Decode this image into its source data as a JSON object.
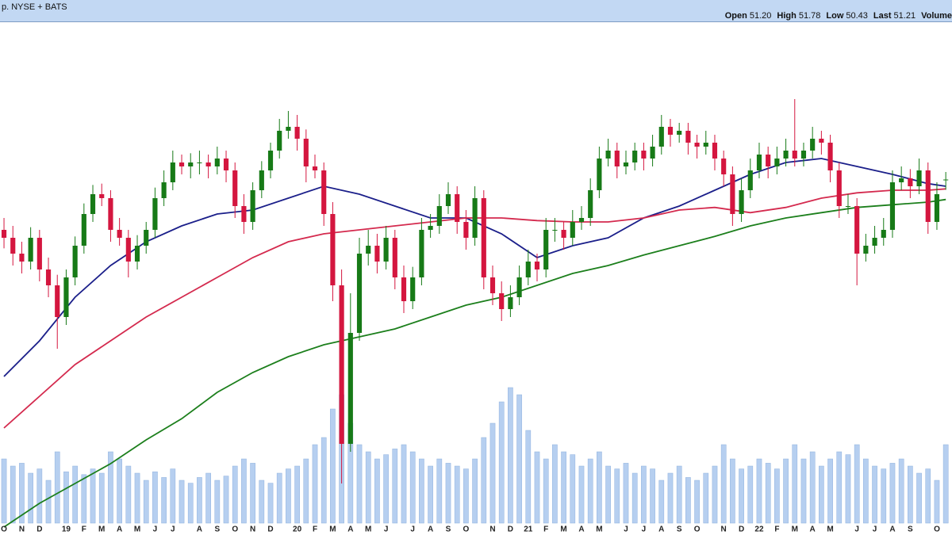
{
  "header": {
    "title": "p. NYSE + BATS",
    "quote": [
      {
        "label": "Open",
        "value": "51.20"
      },
      {
        "label": "High",
        "value": "51.78"
      },
      {
        "label": "Low",
        "value": "50.43"
      },
      {
        "label": "Last",
        "value": "51.21"
      },
      {
        "label": "Volume"
      }
    ]
  },
  "chart_data": {
    "type": "candlestick",
    "categories": [
      "O",
      null,
      "N",
      null,
      "D",
      null,
      null,
      "19",
      null,
      "F",
      null,
      "M",
      null,
      "A",
      null,
      "M",
      null,
      "J",
      null,
      "J",
      null,
      null,
      "A",
      null,
      "S",
      null,
      "O",
      null,
      "N",
      null,
      "D",
      null,
      null,
      "20",
      null,
      "F",
      null,
      "M",
      null,
      "A",
      null,
      "M",
      null,
      "J",
      null,
      null,
      "J",
      null,
      "A",
      null,
      "S",
      null,
      "O",
      null,
      null,
      "N",
      null,
      "D",
      null,
      "21",
      null,
      "F",
      null,
      "M",
      null,
      "A",
      null,
      "M",
      null,
      null,
      "J",
      null,
      "J",
      null,
      "A",
      null,
      "S",
      null,
      "O",
      null,
      null,
      "N",
      null,
      "D",
      null,
      "22",
      null,
      "F",
      null,
      "M",
      null,
      "A",
      null,
      "M",
      null,
      null,
      "J",
      null,
      "J",
      null,
      "A",
      null,
      "S",
      null,
      null,
      "O",
      null
    ],
    "open": [
      47.4,
      46.8,
      45.6,
      45.0,
      46.8,
      44.4,
      43.2,
      40.8,
      43.8,
      46.2,
      48.6,
      50.1,
      49.8,
      47.4,
      46.8,
      45.0,
      46.2,
      47.4,
      49.8,
      51.0,
      52.5,
      52.2,
      52.5,
      52.5,
      52.2,
      52.8,
      51.9,
      49.2,
      48.0,
      50.4,
      51.9,
      53.4,
      54.9,
      55.2,
      54.3,
      52.2,
      51.9,
      48.6,
      43.2,
      31.2,
      39.6,
      45.6,
      46.2,
      45.0,
      46.8,
      43.8,
      42.0,
      43.8,
      47.4,
      47.7,
      49.2,
      50.1,
      48.0,
      46.8,
      49.8,
      43.8,
      42.6,
      41.4,
      42.3,
      43.8,
      45.0,
      44.4,
      47.4,
      47.4,
      46.8,
      48.0,
      48.3,
      50.4,
      52.8,
      53.4,
      52.2,
      52.5,
      53.4,
      52.8,
      53.7,
      55.2,
      54.6,
      54.9,
      54.0,
      53.7,
      54.0,
      52.8,
      51.6,
      48.6,
      50.4,
      51.9,
      53.1,
      52.2,
      52.8,
      53.4,
      52.8,
      53.4,
      54.3,
      54.0,
      51.9,
      49.2,
      49.2,
      45.6,
      46.2,
      46.8,
      47.4,
      51.0,
      51.3,
      50.7,
      51.9,
      48.0,
      51.2
    ],
    "high": [
      48.3,
      47.7,
      46.5,
      47.6,
      47.4,
      45.3,
      44.0,
      44.4,
      46.9,
      49.4,
      50.8,
      50.9,
      50.4,
      48.3,
      47.4,
      47.0,
      48.0,
      50.6,
      51.9,
      53.4,
      53.1,
      53.2,
      53.4,
      53.1,
      53.7,
      53.4,
      52.5,
      50.1,
      51.0,
      52.6,
      54.0,
      55.8,
      56.4,
      56.1,
      55.0,
      53.1,
      52.5,
      49.5,
      44.4,
      42.6,
      46.8,
      47.4,
      47.1,
      47.7,
      47.4,
      44.7,
      44.6,
      48.3,
      48.6,
      50.1,
      51.0,
      50.7,
      48.9,
      50.7,
      50.4,
      44.7,
      43.5,
      43.2,
      44.7,
      45.9,
      45.6,
      48.3,
      48.3,
      48.0,
      48.9,
      49.2,
      51.3,
      53.7,
      54.3,
      54.0,
      53.4,
      54.0,
      54.0,
      54.6,
      56.1,
      55.8,
      55.5,
      55.5,
      54.6,
      54.9,
      54.6,
      53.4,
      52.2,
      51.3,
      52.8,
      54.0,
      53.7,
      53.7,
      54.3,
      57.3,
      54.0,
      55.2,
      54.9,
      54.6,
      52.5,
      50.1,
      49.8,
      47.1,
      47.7,
      48.3,
      51.9,
      52.2,
      52.0,
      52.8,
      52.5,
      51.0,
      51.78
    ],
    "low": [
      46.0,
      44.7,
      44.1,
      44.4,
      43.5,
      42.3,
      38.4,
      40.2,
      43.2,
      45.6,
      48.0,
      49.2,
      46.5,
      46.2,
      43.8,
      44.4,
      45.6,
      46.8,
      49.2,
      50.4,
      51.6,
      51.3,
      51.6,
      51.3,
      51.6,
      51.0,
      48.3,
      47.1,
      47.4,
      49.8,
      51.3,
      52.8,
      54.3,
      53.4,
      51.0,
      51.3,
      47.7,
      42.0,
      28.2,
      30.6,
      39.0,
      44.7,
      44.1,
      44.4,
      42.9,
      41.1,
      41.4,
      43.2,
      46.8,
      47.1,
      48.6,
      47.1,
      45.9,
      46.2,
      42.9,
      41.7,
      40.5,
      40.8,
      41.7,
      43.2,
      43.5,
      43.8,
      46.5,
      45.9,
      46.2,
      47.4,
      47.7,
      49.8,
      52.2,
      51.3,
      51.6,
      51.9,
      51.9,
      52.2,
      53.1,
      53.7,
      54.0,
      53.1,
      52.8,
      53.1,
      51.9,
      50.7,
      47.7,
      48.0,
      49.8,
      51.3,
      51.3,
      51.6,
      52.2,
      52.2,
      52.2,
      52.8,
      53.1,
      51.0,
      48.3,
      48.6,
      43.2,
      45.0,
      45.6,
      46.2,
      46.8,
      50.4,
      49.8,
      50.1,
      47.1,
      47.4,
      50.43
    ],
    "close": [
      46.8,
      45.6,
      45.0,
      46.8,
      44.4,
      43.2,
      40.8,
      43.8,
      46.2,
      48.6,
      50.1,
      49.8,
      47.4,
      46.8,
      45.0,
      46.2,
      47.4,
      49.8,
      51.0,
      52.5,
      52.2,
      52.5,
      52.5,
      52.2,
      52.8,
      51.9,
      49.2,
      48.0,
      50.4,
      51.9,
      53.4,
      54.9,
      55.2,
      54.3,
      52.2,
      51.9,
      48.6,
      43.2,
      31.2,
      39.6,
      45.6,
      46.2,
      45.0,
      46.8,
      43.8,
      42.0,
      43.8,
      47.4,
      47.7,
      49.2,
      50.1,
      48.0,
      46.8,
      49.8,
      43.8,
      42.6,
      41.4,
      42.3,
      43.8,
      45.0,
      44.4,
      47.4,
      47.4,
      46.8,
      48.0,
      48.3,
      50.4,
      52.8,
      53.4,
      52.2,
      52.5,
      53.4,
      52.8,
      53.7,
      55.2,
      54.6,
      54.9,
      54.0,
      53.7,
      54.0,
      52.8,
      51.6,
      48.6,
      50.4,
      51.9,
      53.1,
      52.2,
      52.8,
      53.4,
      52.8,
      53.4,
      54.3,
      54.0,
      51.9,
      49.2,
      49.2,
      45.6,
      46.2,
      46.8,
      47.4,
      51.0,
      51.3,
      50.7,
      51.9,
      48.0,
      50.1,
      51.21
    ],
    "volume": [
      45,
      40,
      42,
      35,
      38,
      30,
      50,
      36,
      40,
      34,
      38,
      35,
      50,
      45,
      40,
      35,
      30,
      36,
      32,
      38,
      30,
      28,
      32,
      35,
      30,
      33,
      40,
      45,
      42,
      30,
      28,
      35,
      38,
      40,
      45,
      55,
      60,
      80,
      90,
      70,
      55,
      50,
      45,
      48,
      52,
      55,
      50,
      45,
      40,
      45,
      42,
      40,
      38,
      45,
      60,
      70,
      85,
      95,
      90,
      65,
      50,
      45,
      55,
      50,
      48,
      40,
      45,
      50,
      40,
      38,
      42,
      35,
      40,
      38,
      30,
      35,
      40,
      32,
      30,
      35,
      40,
      55,
      45,
      38,
      40,
      45,
      42,
      38,
      45,
      55,
      45,
      50,
      40,
      45,
      50,
      48,
      55,
      45,
      40,
      38,
      42,
      45,
      40,
      35,
      38,
      30,
      55
    ],
    "up_color": "#177a17",
    "down_color": "#d4163f",
    "volume_color": "#b6cff0",
    "xlim": [
      -0.45,
      106.7
    ],
    "ylim": [
      24.3,
      63.0
    ],
    "vlim": [
      0,
      100
    ],
    "ma_x": [
      0,
      4,
      8,
      12,
      16,
      20,
      24,
      28,
      32,
      36,
      40,
      44,
      48,
      52,
      56,
      60,
      64,
      68,
      72,
      76,
      80,
      84,
      88,
      92,
      96,
      100,
      104,
      106
    ],
    "moving_averages": [
      {
        "color": "#1b1f8a",
        "values": [
          36.3,
          39.0,
          42.3,
          44.7,
          46.5,
          47.7,
          48.6,
          48.9,
          49.8,
          50.7,
          50.1,
          49.2,
          48.3,
          48.3,
          47.1,
          45.3,
          46.2,
          46.8,
          48.3,
          49.2,
          50.4,
          51.6,
          52.5,
          52.8,
          52.2,
          51.6,
          50.9,
          50.7
        ]
      },
      {
        "color": "#d42a4e",
        "values": [
          32.4,
          34.8,
          37.2,
          39.0,
          40.8,
          42.3,
          43.8,
          45.3,
          46.5,
          47.1,
          47.4,
          47.7,
          48.0,
          48.3,
          48.3,
          48.1,
          48.0,
          48.0,
          48.3,
          48.9,
          49.1,
          48.7,
          49.1,
          49.8,
          50.2,
          50.4,
          50.4,
          50.5
        ]
      },
      {
        "color": "#1c7f1c",
        "values": [
          24.9,
          26.7,
          28.2,
          29.7,
          31.5,
          33.1,
          35.1,
          36.6,
          37.8,
          38.7,
          39.3,
          39.9,
          40.8,
          41.7,
          42.3,
          43.2,
          44.1,
          44.7,
          45.5,
          46.2,
          46.9,
          47.7,
          48.3,
          48.7,
          49.1,
          49.3,
          49.5,
          49.7
        ]
      }
    ]
  }
}
